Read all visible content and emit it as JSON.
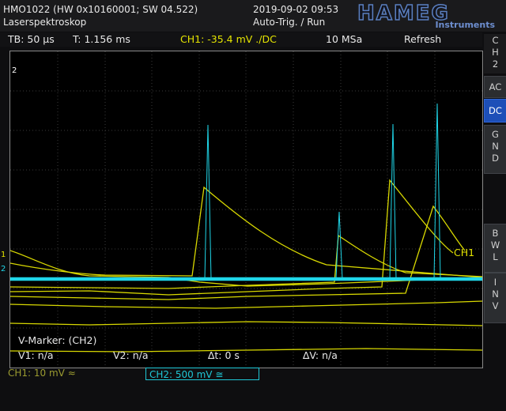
{
  "header": {
    "device": "HMO1022 (HW 0x10160001; SW 04.522)",
    "subtitle": "Laserspektroskop",
    "datetime": "2019-09-02 09:53",
    "trigger": "Auto-Trig. / Run",
    "logo": "HAMEG",
    "logo_sub": "Instruments"
  },
  "status": {
    "timebase": "TB: 50 µs",
    "time": "T: 1.156 ms",
    "trigger_level": "CH1: -35.4 mV ./DC",
    "sample_rate": "10 MSa",
    "mode": "Refresh"
  },
  "side_menu": {
    "channel": [
      "C",
      "H",
      "2"
    ],
    "ac": "AC",
    "dc": "DC",
    "gnd": [
      "G",
      "N",
      "D"
    ],
    "bwl": [
      "B",
      "W",
      "L"
    ],
    "inv": [
      "I",
      "N",
      "V"
    ]
  },
  "markers": {
    "ch2_marker": "2",
    "ch1_label": "CH1",
    "left_1": "1",
    "left_2": "2"
  },
  "cursor": {
    "title": "V-Marker: (CH2)",
    "v1": "V1: n/a",
    "v2": "V2: n/a",
    "dt": "∆t: 0 s",
    "dv": "∆V: n/a"
  },
  "footer": {
    "ch1": "CH1: 10 mV ≈",
    "ch2": "CH2: 500 mV ≅"
  },
  "colors": {
    "ch1": "#e4e400",
    "ch2": "#1fd6e8",
    "accent": "#1d4fb8"
  }
}
